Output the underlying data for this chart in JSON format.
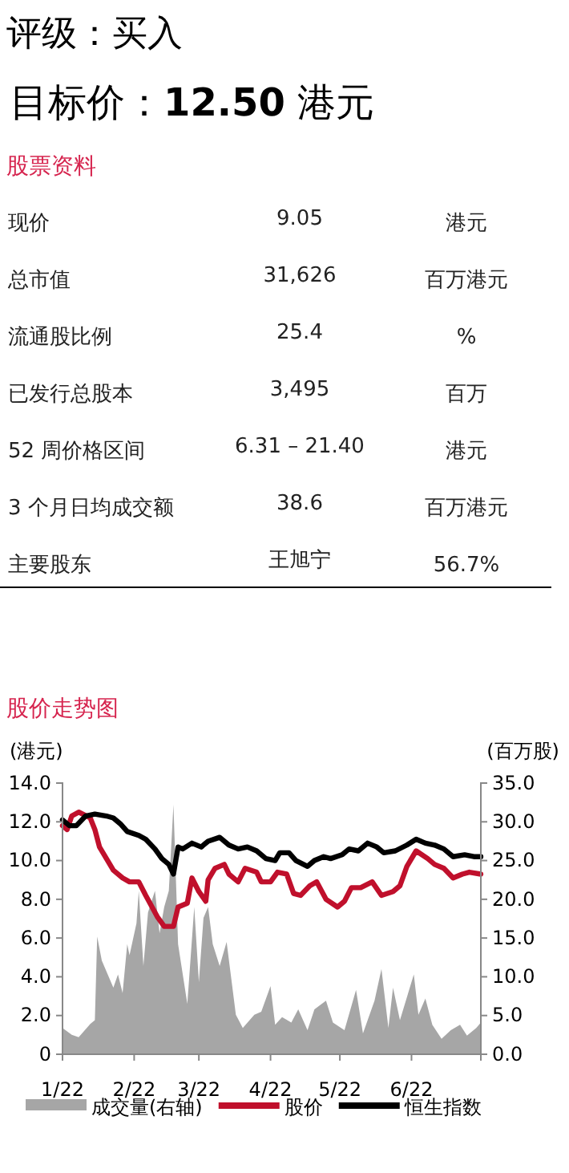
{
  "chart_data": [
    {
      "type": "other",
      "title": "评级：买入",
      "subtitle": "目标价：12.50 港元",
      "annotations": [
        "股票资料",
        "现价",
        "9.05",
        "港元",
        "总市值",
        "31,626",
        "百万港元",
        "流通股比例",
        "25.4",
        "%",
        "已发行总股本",
        "3,495",
        "百万",
        "52 周价格区间",
        "6.31 – 21.40",
        "港元",
        "3 个月日均成交额",
        "38.6",
        "百万港元",
        "主要股东",
        "王旭宁",
        "56.7%"
      ]
    },
    {
      "type": "line",
      "title": "股价走势图",
      "ylabel": "(港元)",
      "y2label": "(百万股)",
      "xlim": [
        "--01-22",
        "--07-22"
      ],
      "xticks": [
        {
          "value": "--01-22",
          "label": "1/22"
        },
        {
          "value": "--02-22",
          "label": "2/22"
        },
        {
          "value": "--03-22",
          "label": "3/22"
        },
        {
          "value": "--04-22",
          "label": "4/22"
        },
        {
          "value": "--05-22",
          "label": "5/22"
        },
        {
          "value": "--06-22",
          "label": "6/22"
        }
      ],
      "ylim": [
        0,
        14
      ],
      "yticks": [
        {
          "value": 0,
          "label": "0"
        },
        {
          "value": 2,
          "label": "2.0"
        },
        {
          "value": 4,
          "label": "4.0"
        },
        {
          "value": 6,
          "label": "6.0"
        },
        {
          "value": 8,
          "label": "8.0"
        },
        {
          "value": 10,
          "label": "10.0"
        },
        {
          "value": 12,
          "label": "12.0"
        },
        {
          "value": 14,
          "label": "14.0"
        }
      ],
      "y2lim": [
        0,
        35
      ],
      "y2ticks": [
        {
          "value": 0,
          "label": "0.0"
        },
        {
          "value": 5,
          "label": "5.0"
        },
        {
          "value": 10,
          "label": "10.0"
        },
        {
          "value": 15,
          "label": "15.0"
        },
        {
          "value": 20,
          "label": "20.0"
        },
        {
          "value": 25,
          "label": "25.0"
        },
        {
          "value": 30,
          "label": "30.0"
        },
        {
          "value": 35,
          "label": "35.0"
        }
      ],
      "legend": "bottom",
      "series": [
        {
          "type": "area",
          "axis": "y2",
          "name": "成交量(右轴)",
          "color": "#a6a6a6",
          "x": [
            "--01-22",
            "--01-26",
            "--01-29",
            "--02-03",
            "--02-05",
            "--02-06",
            "--02-08",
            "--02-11",
            "--02-13",
            "--02-15",
            "--02-17",
            "--02-19",
            "--02-20",
            "--02-23",
            "--02-24",
            "--02-26",
            "--02-28",
            "--03-03",
            "--03-05",
            "--03-07",
            "--03-09",
            "--03-11",
            "--03-13",
            "--03-17",
            "--03-20",
            "--03-22",
            "--03-24",
            "--03-26",
            "--03-28",
            "--03-31",
            "--04-03",
            "--04-07",
            "--04-10",
            "--04-15",
            "--04-18",
            "--04-22",
            "--04-24",
            "--04-27",
            "--05-01",
            "--05-04",
            "--05-08",
            "--05-11",
            "--05-16",
            "--05-19",
            "--05-24",
            "--05-29",
            "--06-01",
            "--06-06",
            "--06-09",
            "--06-12",
            "--06-14",
            "--06-17",
            "--06-23",
            "--06-25",
            "--06-28",
            "--07-01",
            "--07-05",
            "--07-09",
            "--07-13",
            "--07-16",
            "--07-20",
            "--07-22"
          ],
          "values": [
            3.4,
            2.5,
            2.2,
            3.9,
            4.4,
            15.2,
            12.1,
            10,
            8.6,
            10.3,
            7.9,
            14.2,
            12.8,
            16.9,
            21.1,
            11.4,
            18.3,
            21.1,
            15.6,
            19,
            21.1,
            32.2,
            14.2,
            6.5,
            19,
            9.3,
            17.6,
            19,
            14.2,
            11.4,
            14.5,
            5.1,
            3.4,
            5.1,
            5.5,
            8.8,
            3.8,
            4.8,
            4.1,
            5.8,
            3.1,
            5.8,
            6.9,
            4.1,
            3.1,
            8.3,
            2.7,
            6.9,
            11,
            3.4,
            8.6,
            4.4,
            10.3,
            5.1,
            7.2,
            3.8,
            2,
            3.1,
            3.8,
            2.4,
            3.4,
            4.1
          ]
        },
        {
          "type": "line",
          "name": "股价",
          "color": "#c0102c",
          "x": [
            "--01-22",
            "--01-24",
            "--01-26",
            "--01-29",
            "--02-03",
            "--02-05",
            "--02-07",
            "--02-10",
            "--02-13",
            "--02-17",
            "--02-20",
            "--02-24",
            "--02-27",
            "--03-04",
            "--03-07",
            "--03-11",
            "--03-13",
            "--03-17",
            "--03-19",
            "--03-22",
            "--03-25",
            "--03-26",
            "--03-29",
            "--04-02",
            "--04-04",
            "--04-08",
            "--04-11",
            "--04-16",
            "--04-18",
            "--04-22",
            "--04-25",
            "--04-29",
            "--05-02",
            "--05-05",
            "--05-09",
            "--05-12",
            "--05-16",
            "--05-21",
            "--05-24",
            "--05-27",
            "--05-31",
            "--06-05",
            "--06-09",
            "--06-14",
            "--06-17",
            "--06-20",
            "--06-24",
            "--06-29",
            "--07-02",
            "--07-06",
            "--07-10",
            "--07-14",
            "--07-17",
            "--07-22"
          ],
          "values": [
            11.8,
            11.6,
            12.3,
            12.5,
            12.2,
            11.6,
            10.7,
            10.1,
            9.5,
            9.1,
            8.9,
            8.9,
            8.2,
            7.1,
            6.6,
            6.6,
            7.6,
            7.8,
            9.1,
            8.4,
            7.9,
            9,
            9.6,
            9.8,
            9.3,
            8.9,
            9.6,
            9.4,
            8.9,
            8.9,
            9.4,
            9.3,
            8.3,
            8.2,
            8.7,
            8.9,
            8,
            7.6,
            7.9,
            8.6,
            8.6,
            8.9,
            8.2,
            8.4,
            8.7,
            9.7,
            10.5,
            10.1,
            9.8,
            9.6,
            9.1,
            9.3,
            9.4,
            9.3
          ]
        },
        {
          "type": "line",
          "name": "恒生指数",
          "color": "#000000",
          "x": [
            "--01-22",
            "--01-25",
            "--01-28",
            "--02-01",
            "--02-05",
            "--02-10",
            "--02-13",
            "--02-16",
            "--02-19",
            "--02-24",
            "--02-27",
            "--03-03",
            "--03-06",
            "--03-09",
            "--03-11",
            "--03-13",
            "--03-15",
            "--03-19",
            "--03-23",
            "--03-26",
            "--03-31",
            "--04-04",
            "--04-08",
            "--04-12",
            "--04-16",
            "--04-20",
            "--04-24",
            "--04-26",
            "--04-30",
            "--05-03",
            "--05-08",
            "--05-11",
            "--05-15",
            "--05-18",
            "--05-23",
            "--05-26",
            "--05-30",
            "--06-03",
            "--06-07",
            "--06-10",
            "--06-15",
            "--06-20",
            "--06-24",
            "--06-28",
            "--07-02",
            "--07-06",
            "--07-10",
            "--07-15",
            "--07-19",
            "--07-22"
          ],
          "values": [
            12.1,
            11.8,
            11.8,
            12.3,
            12.4,
            12.3,
            12.2,
            11.9,
            11.5,
            11.3,
            11.1,
            10.6,
            10.1,
            9.8,
            9.3,
            10.7,
            10.6,
            10.9,
            10.7,
            11,
            11.2,
            10.8,
            10.6,
            10.7,
            10.5,
            10.1,
            10,
            10.4,
            10.4,
            10,
            9.7,
            10,
            10.2,
            10.1,
            10.3,
            10.6,
            10.5,
            10.9,
            10.7,
            10.4,
            10.5,
            10.8,
            11.1,
            10.9,
            10.8,
            10.6,
            10.2,
            10.3,
            10.2,
            10.2
          ]
        }
      ]
    }
  ]
}
